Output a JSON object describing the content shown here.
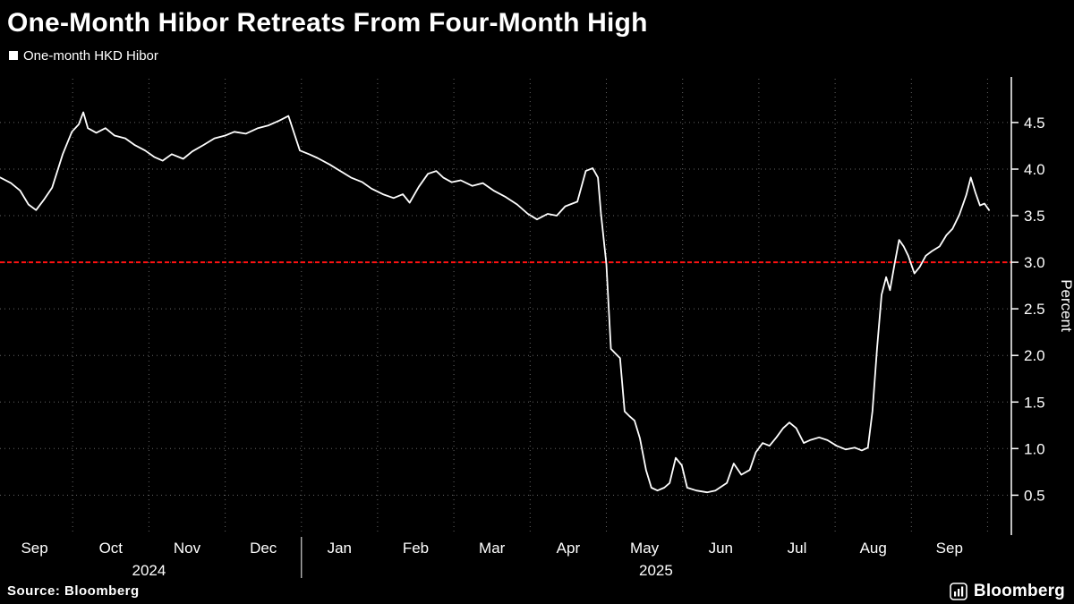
{
  "header": {
    "title": "One-Month Hibor Retreats From Four-Month High"
  },
  "legend": {
    "items": [
      {
        "label": "One-month HKD Hibor",
        "marker_color": "#ffffff"
      }
    ]
  },
  "footer": {
    "source": "Source: Bloomberg",
    "brand": "Bloomberg"
  },
  "colors": {
    "background": "#000000",
    "text": "#ffffff",
    "grid": "#666666",
    "series": "#ffffff",
    "reference": "#ff1111"
  },
  "chart_data": {
    "type": "line",
    "title": "One-Month Hibor Retreats From Four-Month High",
    "xlabel": "",
    "ylabel": "Percent",
    "ylim": [
      0.1,
      4.97
    ],
    "yticks": [
      0.5,
      1.0,
      1.5,
      2.0,
      2.5,
      3.0,
      3.5,
      4.0,
      4.5
    ],
    "grid": {
      "color": "#666666",
      "style": "dotted",
      "on": true
    },
    "legend_position": "top-left",
    "reference_line": {
      "value": 3.0,
      "color": "#ff1111",
      "style": "dashed",
      "label": ""
    },
    "x_axis": {
      "unit": "months since 2024-09-01",
      "range": [
        0,
        13.3
      ],
      "month_boundaries": [
        0,
        1,
        2,
        3,
        4,
        5,
        6,
        7,
        8,
        9,
        10,
        11,
        12,
        13
      ],
      "month_labels": [
        "Sep",
        "Oct",
        "Nov",
        "Dec",
        "Jan",
        "Feb",
        "Mar",
        "Apr",
        "May",
        "Jun",
        "Jul",
        "Aug",
        "Sep"
      ],
      "year_labels": [
        {
          "label": "2024",
          "span": [
            0,
            4
          ]
        },
        {
          "label": "2025",
          "span": [
            4,
            13.3
          ]
        }
      ]
    },
    "series": [
      {
        "name": "One-month HKD Hibor",
        "color": "#ffffff",
        "points": [
          [
            0.05,
            3.91
          ],
          [
            0.19,
            3.85
          ],
          [
            0.31,
            3.77
          ],
          [
            0.42,
            3.62
          ],
          [
            0.52,
            3.56
          ],
          [
            0.63,
            3.68
          ],
          [
            0.73,
            3.8
          ],
          [
            0.87,
            4.16
          ],
          [
            0.99,
            4.4
          ],
          [
            1.08,
            4.48
          ],
          [
            1.14,
            4.61
          ],
          [
            1.2,
            4.44
          ],
          [
            1.31,
            4.39
          ],
          [
            1.43,
            4.44
          ],
          [
            1.55,
            4.36
          ],
          [
            1.69,
            4.33
          ],
          [
            1.81,
            4.26
          ],
          [
            1.95,
            4.2
          ],
          [
            2.07,
            4.13
          ],
          [
            2.18,
            4.09
          ],
          [
            2.3,
            4.16
          ],
          [
            2.45,
            4.11
          ],
          [
            2.57,
            4.19
          ],
          [
            2.72,
            4.26
          ],
          [
            2.86,
            4.33
          ],
          [
            3.0,
            4.36
          ],
          [
            3.12,
            4.4
          ],
          [
            3.27,
            4.38
          ],
          [
            3.43,
            4.44
          ],
          [
            3.57,
            4.47
          ],
          [
            3.71,
            4.52
          ],
          [
            3.83,
            4.57
          ],
          [
            3.98,
            4.2
          ],
          [
            4.1,
            4.16
          ],
          [
            4.21,
            4.12
          ],
          [
            4.37,
            4.05
          ],
          [
            4.51,
            3.98
          ],
          [
            4.65,
            3.91
          ],
          [
            4.8,
            3.86
          ],
          [
            4.92,
            3.79
          ],
          [
            5.07,
            3.73
          ],
          [
            5.21,
            3.69
          ],
          [
            5.33,
            3.73
          ],
          [
            5.42,
            3.64
          ],
          [
            5.54,
            3.81
          ],
          [
            5.66,
            3.95
          ],
          [
            5.77,
            3.98
          ],
          [
            5.86,
            3.91
          ],
          [
            5.97,
            3.86
          ],
          [
            6.09,
            3.88
          ],
          [
            6.24,
            3.82
          ],
          [
            6.38,
            3.85
          ],
          [
            6.52,
            3.77
          ],
          [
            6.68,
            3.7
          ],
          [
            6.83,
            3.62
          ],
          [
            6.97,
            3.52
          ],
          [
            7.09,
            3.46
          ],
          [
            7.23,
            3.52
          ],
          [
            7.35,
            3.5
          ],
          [
            7.46,
            3.6
          ],
          [
            7.62,
            3.65
          ],
          [
            7.73,
            3.98
          ],
          [
            7.82,
            4.01
          ],
          [
            7.89,
            3.91
          ],
          [
            7.93,
            3.52
          ],
          [
            8.0,
            2.98
          ],
          [
            8.06,
            2.07
          ],
          [
            8.12,
            2.02
          ],
          [
            8.18,
            1.97
          ],
          [
            8.24,
            1.4
          ],
          [
            8.3,
            1.35
          ],
          [
            8.37,
            1.3
          ],
          [
            8.44,
            1.11
          ],
          [
            8.52,
            0.77
          ],
          [
            8.59,
            0.58
          ],
          [
            8.67,
            0.55
          ],
          [
            8.76,
            0.58
          ],
          [
            8.83,
            0.63
          ],
          [
            8.91,
            0.9
          ],
          [
            8.99,
            0.82
          ],
          [
            9.06,
            0.58
          ],
          [
            9.18,
            0.55
          ],
          [
            9.32,
            0.53
          ],
          [
            9.43,
            0.55
          ],
          [
            9.58,
            0.63
          ],
          [
            9.67,
            0.84
          ],
          [
            9.77,
            0.72
          ],
          [
            9.88,
            0.77
          ],
          [
            9.96,
            0.96
          ],
          [
            10.05,
            1.06
          ],
          [
            10.14,
            1.03
          ],
          [
            10.23,
            1.12
          ],
          [
            10.32,
            1.22
          ],
          [
            10.4,
            1.28
          ],
          [
            10.49,
            1.22
          ],
          [
            10.59,
            1.06
          ],
          [
            10.67,
            1.09
          ],
          [
            10.79,
            1.12
          ],
          [
            10.9,
            1.09
          ],
          [
            11.02,
            1.03
          ],
          [
            11.14,
            0.99
          ],
          [
            11.26,
            1.01
          ],
          [
            11.35,
            0.98
          ],
          [
            11.43,
            1.01
          ],
          [
            11.49,
            1.4
          ],
          [
            11.55,
            2.07
          ],
          [
            11.61,
            2.65
          ],
          [
            11.67,
            2.84
          ],
          [
            11.72,
            2.7
          ],
          [
            11.78,
            2.98
          ],
          [
            11.84,
            3.24
          ],
          [
            11.9,
            3.17
          ],
          [
            11.96,
            3.07
          ],
          [
            12.04,
            2.88
          ],
          [
            12.11,
            2.95
          ],
          [
            12.19,
            3.07
          ],
          [
            12.27,
            3.12
          ],
          [
            12.37,
            3.17
          ],
          [
            12.46,
            3.29
          ],
          [
            12.54,
            3.36
          ],
          [
            12.63,
            3.51
          ],
          [
            12.72,
            3.72
          ],
          [
            12.78,
            3.91
          ],
          [
            12.84,
            3.75
          ],
          [
            12.9,
            3.61
          ],
          [
            12.96,
            3.63
          ],
          [
            13.02,
            3.56
          ]
        ]
      }
    ]
  }
}
